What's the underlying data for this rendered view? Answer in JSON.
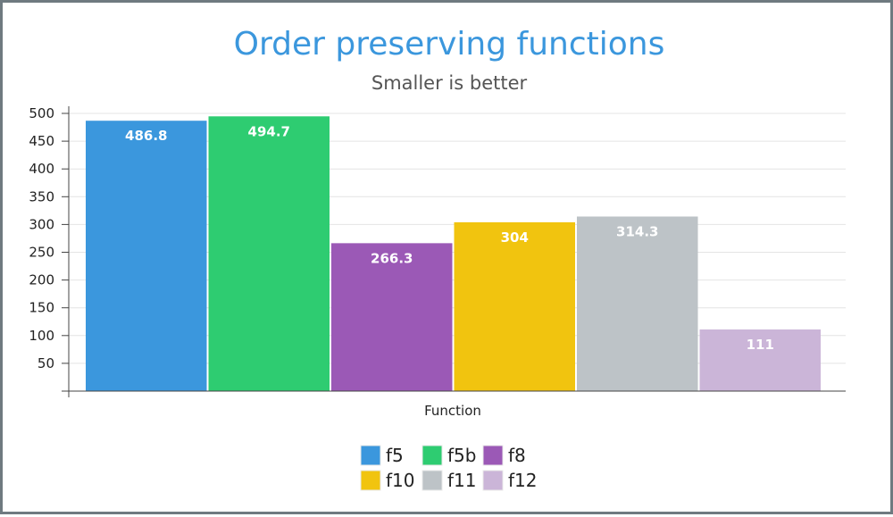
{
  "chart_data": {
    "type": "bar",
    "title": "Order preserving functions",
    "subtitle": "Smaller is better",
    "xlabel": "Function",
    "ylabel": "",
    "ylim": [
      0,
      500
    ],
    "yticks": [
      50,
      100,
      150,
      200,
      250,
      300,
      350,
      400,
      450,
      500
    ],
    "grid": true,
    "legend_position": "bottom",
    "series": [
      {
        "name": "f5",
        "value": 486.8,
        "color": "#3b97dd"
      },
      {
        "name": "f5b",
        "value": 494.7,
        "color": "#2ecc71"
      },
      {
        "name": "f8",
        "value": 266.3,
        "color": "#9b59b6"
      },
      {
        "name": "f10",
        "value": 304,
        "color": "#f1c40f"
      },
      {
        "name": "f11",
        "value": 314.3,
        "color": "#bdc3c7"
      },
      {
        "name": "f12",
        "value": 111,
        "color": "#cbb5d8"
      }
    ]
  }
}
